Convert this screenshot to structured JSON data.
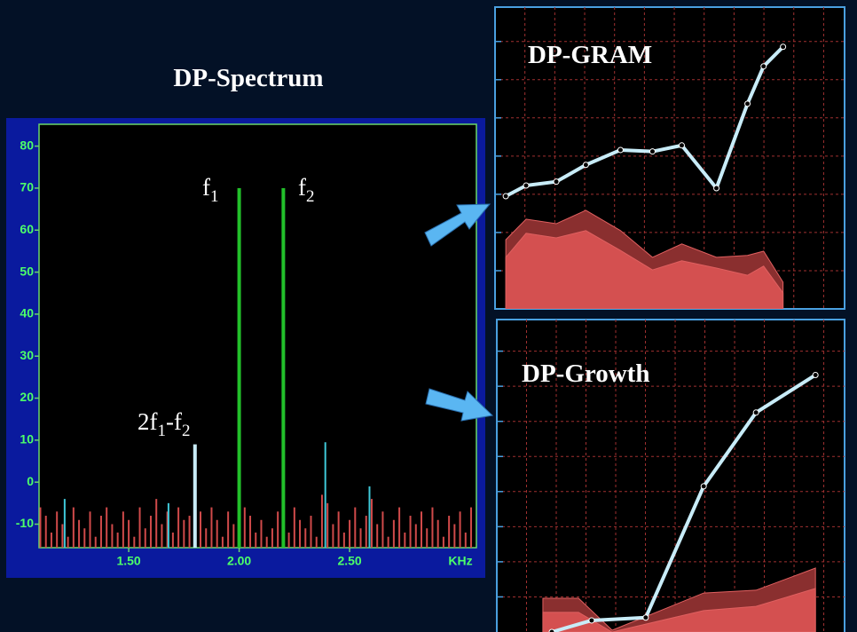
{
  "chart_data": [
    {
      "type": "bar",
      "title": "DP-Spectrum",
      "xlabel": "KHz",
      "xlim": [
        1.094,
        3.074
      ],
      "ylim": [
        -15.6,
        85.2
      ],
      "xticks": [
        {
          "value": 1.5,
          "label": "1.50"
        },
        {
          "value": 2.0,
          "label": "2.00"
        },
        {
          "value": 2.5,
          "label": "2.50"
        }
      ],
      "yticks": [
        -10,
        0,
        10,
        20,
        30,
        40,
        50,
        60,
        70,
        80
      ],
      "annotations": [
        [
          "f",
          "1"
        ],
        [
          "f",
          "2"
        ],
        [
          "2f",
          "1",
          "-f",
          "2"
        ]
      ],
      "series": [
        {
          "color": "#d04a4a",
          "x": [
            1.1,
            1.125,
            1.15,
            1.175,
            1.2,
            1.225,
            1.25,
            1.275,
            1.3,
            1.325,
            1.35,
            1.375,
            1.4,
            1.425,
            1.45,
            1.475,
            1.5,
            1.525,
            1.55,
            1.575,
            1.6,
            1.625,
            1.65,
            1.675,
            1.7,
            1.725,
            1.75,
            1.775,
            1.825,
            1.85,
            1.875,
            1.9,
            1.925,
            1.95,
            1.975,
            2.025,
            2.05,
            2.075,
            2.1,
            2.125,
            2.15,
            2.175,
            2.225,
            2.25,
            2.275,
            2.3,
            2.325,
            2.35,
            2.375,
            2.4,
            2.425,
            2.45,
            2.475,
            2.5,
            2.525,
            2.55,
            2.575,
            2.6,
            2.625,
            2.65,
            2.675,
            2.7,
            2.725,
            2.75,
            2.775,
            2.8,
            2.825,
            2.85,
            2.875,
            2.9,
            2.925,
            2.95,
            2.975,
            3,
            3.025,
            3.05
          ],
          "values": [
            -6,
            -8,
            -12,
            -7,
            -10,
            -13,
            -6,
            -9,
            -11,
            -7,
            -13,
            -8,
            -6,
            -10,
            -12,
            -7,
            -9,
            -13,
            -6,
            -11,
            -8,
            -4,
            -10,
            -7,
            -12,
            -6,
            -9,
            -8,
            -7,
            -11,
            -6,
            -9,
            -13,
            -7,
            -10,
            -6,
            -8,
            -12,
            -9,
            -13,
            -11,
            -7,
            -12,
            -6,
            -9,
            -11,
            -8,
            -13,
            -3,
            -5,
            -10,
            -7,
            -12,
            -9,
            -6,
            -11,
            -8,
            -4,
            -10,
            -7,
            -13,
            -9,
            -6,
            -12,
            -8,
            -10,
            -7,
            -11,
            -6,
            -9,
            -13,
            -8,
            -10,
            -7,
            -12,
            -6
          ]
        },
        {
          "color": "#3fc8d8",
          "x": [
            1.21,
            1.68,
            2.39,
            2.59
          ],
          "values": [
            -4,
            -5,
            9.5,
            -1
          ]
        },
        {
          "color": "#22c02a",
          "x": [
            2.0,
            2.2
          ],
          "values": [
            70,
            70
          ]
        },
        {
          "color": "#c8ecf8",
          "x": [
            1.8
          ],
          "values": [
            9
          ]
        }
      ]
    },
    {
      "type": "line",
      "title": "DP-GRAM",
      "xlim": [
        0,
        11.7
      ],
      "ylim": [
        0,
        7.9
      ],
      "xticks": [
        1,
        2,
        3,
        4,
        5,
        6,
        7,
        8,
        9,
        10,
        11
      ],
      "yticks": [
        1,
        2,
        3,
        4,
        5,
        6,
        7
      ],
      "grid": true,
      "series": [
        {
          "style": "area",
          "color": "#8a2f2f",
          "x": [
            0.36,
            1.04,
            2.05,
            3.04,
            4.2,
            5.27,
            6.25,
            7.41,
            8.45,
            8.99,
            9.64
          ],
          "values": [
            1.81,
            2.35,
            2.23,
            2.58,
            2.05,
            1.35,
            1.7,
            1.35,
            1.4,
            1.51,
            0.7
          ]
        },
        {
          "style": "area",
          "color": "#d45050",
          "x": [
            0.36,
            1.04,
            2.05,
            3.04,
            4.2,
            5.27,
            6.25,
            7.41,
            8.45,
            8.99,
            9.64
          ],
          "values": [
            1.35,
            1.98,
            1.86,
            2.05,
            1.53,
            1.02,
            1.26,
            1.07,
            0.88,
            1.12,
            0.42
          ]
        },
        {
          "style": "line",
          "color": "#c8ecf8",
          "x": [
            0.36,
            1.04,
            2.05,
            3.04,
            4.2,
            5.27,
            6.25,
            7.41,
            8.45,
            8.99,
            9.64
          ],
          "values": [
            2.95,
            3.23,
            3.33,
            3.77,
            4.16,
            4.12,
            4.28,
            3.16,
            5.37,
            6.35,
            6.86
          ]
        }
      ]
    },
    {
      "type": "line",
      "title": "DP-Growth",
      "xlim": [
        0,
        11.7
      ],
      "ylim": [
        0,
        8.9
      ],
      "xticks": [
        1,
        2,
        3,
        4,
        5,
        6,
        7,
        8,
        9,
        10,
        11
      ],
      "yticks": [
        1,
        2,
        3,
        4,
        5,
        6,
        7,
        8
      ],
      "grid": true,
      "series": [
        {
          "style": "area",
          "color": "#8a2f2f",
          "x": [
            1.55,
            2.75,
            3.88,
            6.96,
            8.72,
            10.72
          ],
          "values": [
            0.96,
            0.96,
            0.05,
            1.11,
            1.19,
            1.82
          ]
        },
        {
          "style": "area",
          "color": "#d45050",
          "x": [
            1.55,
            2.75,
            3.88,
            6.96,
            8.72,
            10.72
          ],
          "values": [
            0.56,
            0.56,
            0,
            0.61,
            0.73,
            1.24
          ]
        },
        {
          "style": "line",
          "color": "#c8ecf8",
          "x": [
            1.85,
            3.19,
            5.01,
            6.96,
            8.72,
            10.72
          ],
          "values": [
            0,
            0.33,
            0.41,
            4.15,
            6.25,
            7.32
          ]
        }
      ]
    }
  ]
}
